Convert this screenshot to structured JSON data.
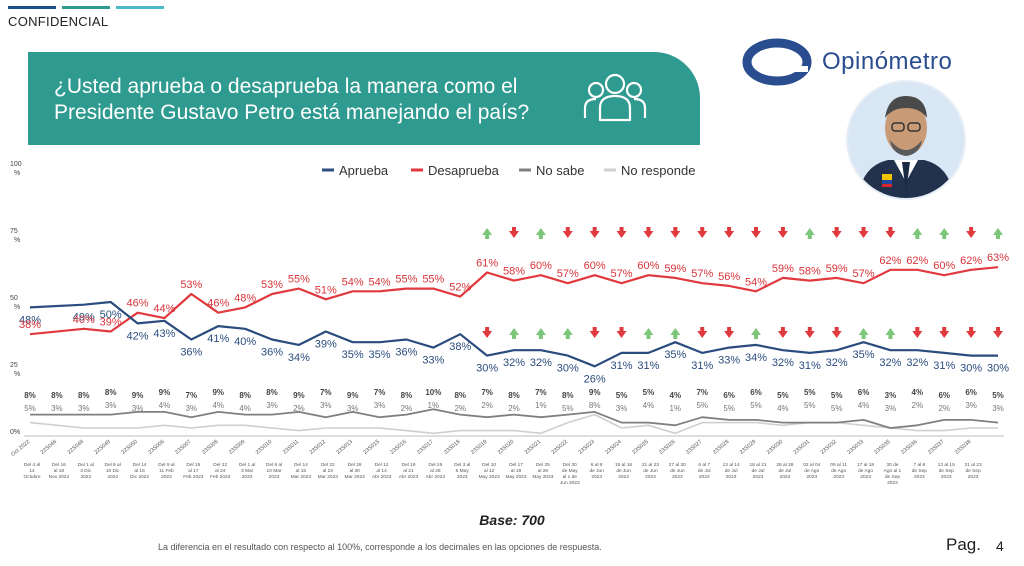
{
  "header": {
    "confidential": "CONFIDENCIAL",
    "question": "¿Usted aprueba o desaprueba la manera como el Presidente Gustavo Petro está manejando el país?",
    "brand": "Opinómetro",
    "top_bar_colors": [
      "#1f4e8a",
      "#2f9a8f",
      "#4db8c8"
    ]
  },
  "colors": {
    "banner": "#2f9a8f",
    "aprueba": "#2b4c7e",
    "desaprueba": "#e0393e",
    "no_sabe": "#7f7f7f",
    "no_responde": "#cfcfcf",
    "arrow_up": "#7cc67a",
    "arrow_down": "#e0393e"
  },
  "chart_data": {
    "type": "line",
    "y_tick_labels": [
      "100 %",
      "75 %",
      "50 %",
      "25 %",
      "0%"
    ],
    "ylim": [
      0,
      100
    ],
    "legend_position": "top",
    "grid": false,
    "series": [
      {
        "name": "Aprueba",
        "color": "#2b4c7e",
        "values": [
          48,
          null,
          49,
          50,
          42,
          43,
          36,
          41,
          40,
          36,
          34,
          39,
          35,
          35,
          36,
          33,
          38,
          30,
          32,
          32,
          30,
          26,
          31,
          31,
          35,
          31,
          33,
          34,
          32,
          31,
          32,
          35,
          32,
          32,
          31,
          30,
          30
        ],
        "labels": [
          "48%",
          null,
          "49%",
          "50%",
          "42%",
          "43%",
          "36%",
          "41%",
          "40%",
          "36%",
          "34%",
          "39%",
          "35%",
          "35%",
          "36%",
          "33%",
          "38%",
          "30%",
          "32%",
          "32%",
          "30%",
          "26%",
          "31%",
          "31%",
          "35%",
          "31%",
          "33%",
          "34%",
          "32%",
          "31%",
          "32%",
          "35%",
          "32%",
          "32%",
          "31%",
          "30%",
          "30%"
        ]
      },
      {
        "name": "Desaprueba",
        "color": "#e0393e",
        "values": [
          38,
          null,
          40,
          39,
          46,
          44,
          53,
          46,
          48,
          53,
          55,
          51,
          54,
          54,
          55,
          55,
          52,
          61,
          58,
          60,
          57,
          60,
          57,
          60,
          59,
          57,
          56,
          54,
          59,
          58,
          59,
          57,
          62,
          62,
          60,
          62,
          63
        ],
        "labels": [
          "38%",
          null,
          "40%",
          "39%",
          "46%",
          "44%",
          "53%",
          "46%",
          "48%",
          "53%",
          "55%",
          "51%",
          "54%",
          "54%",
          "55%",
          "55%",
          "52%",
          "61%",
          "58%",
          "60%",
          "57%",
          "60%",
          "57%",
          "60%",
          "59%",
          "57%",
          "56%",
          "54%",
          "59%",
          "58%",
          "59%",
          "57%",
          "62%",
          "62%",
          "60%",
          "62%",
          "63%"
        ]
      },
      {
        "name": "No sabe",
        "color": "#7f7f7f",
        "values": [
          8,
          null,
          8,
          8,
          9,
          9,
          7,
          9,
          8,
          8,
          9,
          7,
          9,
          7,
          8,
          10,
          8,
          7,
          8,
          7,
          8,
          9,
          5,
          5,
          4,
          7,
          6,
          6,
          5,
          5,
          5,
          6,
          3,
          4,
          6,
          6,
          5
        ],
        "labels": [
          "8%",
          "8%",
          "8%",
          "8%",
          "9%",
          "9%",
          "7%",
          "9%",
          "8%",
          "8%",
          "9%",
          "7%",
          "9%",
          "7%",
          "8%",
          "10%",
          "8%",
          "7%",
          "8%",
          "7%",
          "8%",
          "9%",
          "5%",
          "5%",
          "4%",
          "7%",
          "6%",
          "6%",
          "5%",
          "5%",
          "5%",
          "6%",
          "3%",
          "4%",
          "6%",
          "6%",
          "5%"
        ]
      },
      {
        "name": "No responde",
        "color": "#cfcfcf",
        "values": [
          5,
          null,
          3,
          3,
          3,
          4,
          3,
          4,
          4,
          3,
          2,
          3,
          3,
          3,
          2,
          1,
          2,
          2,
          2,
          1,
          5,
          8,
          3,
          4,
          1,
          5,
          5,
          5,
          4,
          5,
          5,
          4,
          3,
          2,
          2,
          3,
          3
        ],
        "labels": [
          "5%",
          "3%",
          "3%",
          "3%",
          "3%",
          "4%",
          "3%",
          "4%",
          "4%",
          "3%",
          "2%",
          "3%",
          "3%",
          "3%",
          "2%",
          "1%",
          "2%",
          "2%",
          "2%",
          "1%",
          "5%",
          "8%",
          "3%",
          "4%",
          "1%",
          "5%",
          "5%",
          "5%",
          "4%",
          "5%",
          "5%",
          "4%",
          "3%",
          "2%",
          "2%",
          "3%",
          "3%"
        ]
      }
    ],
    "wave_ids": [
      "Oct 2022",
      "22S046",
      "22S048",
      "22S049",
      "22S050",
      "23S006",
      "23S007",
      "23S008",
      "23S009",
      "23S010",
      "23S011",
      "23S012",
      "23S013",
      "23S015",
      "23S016",
      "23S017",
      "23S018",
      "23S019",
      "23S020",
      "23S021",
      "23S022",
      "23S023",
      "23S024",
      "23S025",
      "23S026",
      "23S027",
      "23S028",
      "23S029",
      "23S030",
      "23S031",
      "23S032",
      "23S033",
      "23S035",
      "23S036",
      "23S037",
      "23S038",
      ""
    ],
    "wave_dates": [
      "Del 4 al 14 Octubre",
      "Del 16 al 18 Nov 2022",
      "Del 1 al 3 Dic 2022",
      "Del 8 al 10 Dic 2022",
      "Del 14 al 16 Dic 2022",
      "Del 9 al 11 Feb 2023",
      "Del 15 al 17 Feb 2023",
      "Del 22 al 24 Feb 2023",
      "Del 1 al 3 Mar 2023",
      "Del 9 al 10 Mar 2023",
      "Del 14 al 15 Mar 2023",
      "Del 22 al 23 Mar 2023",
      "Del 28 al 30 Mar 2023",
      "Del 12 al 14 Abr 2023",
      "Del 19 al 21 Abr 2023",
      "Del 25 al 28 Abr 2023",
      "Del 3 al 5 May 2023",
      "Del 10 al 12 May 2023",
      "Del 17 al 19 May 2023",
      "Del 25 al 26 May 2023",
      "Del 30 de May al 1 de Jun 2023",
      "6 al 8 de Jun 2023",
      "15 al 16 de Jun 2023",
      "21 al 23 de Jun 2023",
      "27 al 30 de Jun 2023",
      "6 al 7 de Jul 2023",
      "13 al 14 de Jul 2023",
      "18 al 21 de Jul 2023",
      "26 al 28 de Jul 2023",
      "02 al 04 de Ago 2023",
      "09 al 11 de Ago 2023",
      "17 al 18 de Ago 2023",
      "30 de Ago al 1 de Sep 2023",
      "7 al 8 de Sep 2023",
      "13 al 15 de Sep 2023",
      "21 al 23 de Sep 2023",
      ""
    ],
    "aprueba_arrows": [
      null,
      null,
      null,
      null,
      null,
      null,
      null,
      null,
      null,
      null,
      null,
      null,
      null,
      null,
      null,
      null,
      null,
      "down",
      "up",
      "up",
      "up",
      "down",
      "down",
      "up",
      "up",
      "down",
      "down",
      "up",
      "down",
      "down",
      "down",
      "up",
      "up",
      "down",
      "down",
      "down",
      "down"
    ],
    "desaprueba_arrows": [
      null,
      null,
      null,
      null,
      null,
      null,
      null,
      null,
      null,
      null,
      null,
      null,
      null,
      null,
      null,
      null,
      null,
      "up",
      "down",
      "up",
      "down",
      "down",
      "down",
      "down",
      "down",
      "down",
      "down",
      "down",
      "down",
      "up",
      "down",
      "down",
      "down",
      "up",
      "up",
      "down",
      "up"
    ]
  },
  "footer": {
    "base": "Base: 700",
    "note": "La diferencia en el resultado con respecto al 100%, corresponde a los decimales en las opciones de respuesta.",
    "page_label": "Pag.",
    "page_number": "4"
  }
}
